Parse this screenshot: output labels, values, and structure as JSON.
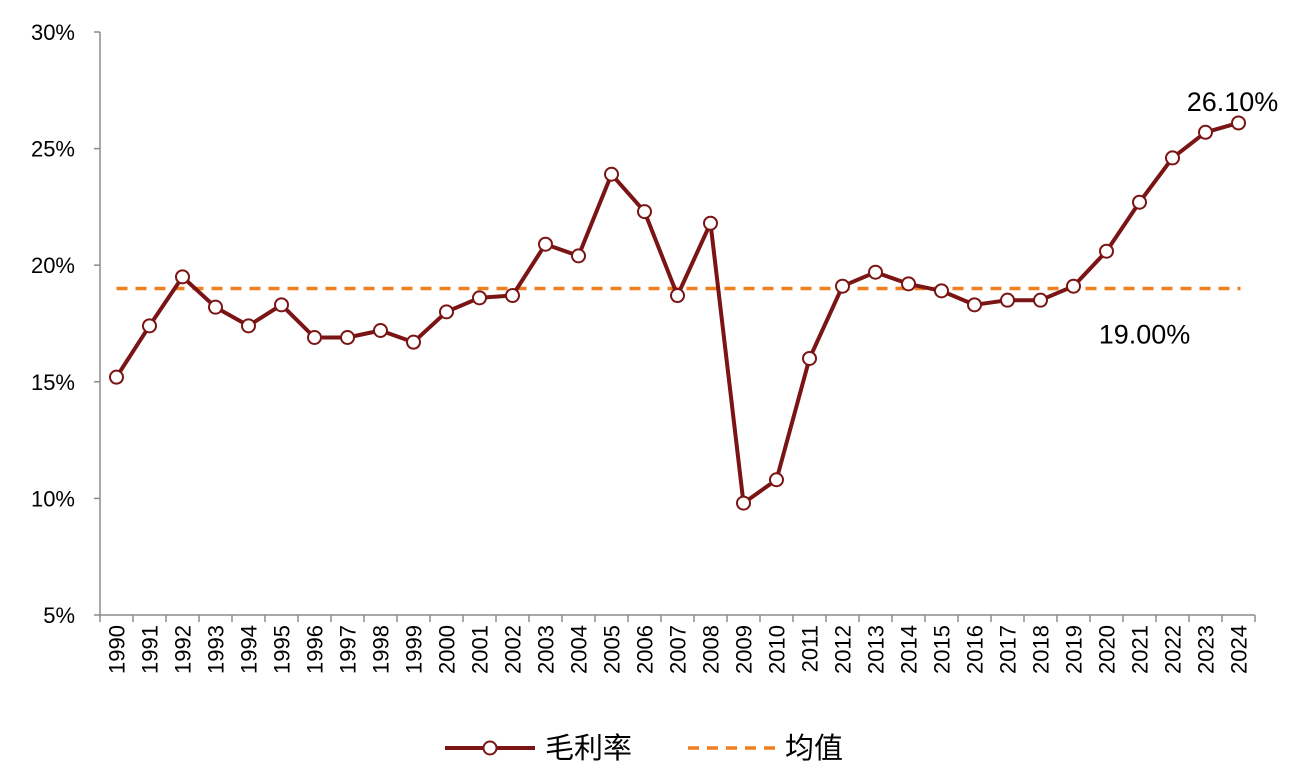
{
  "chart_data": {
    "type": "line",
    "x": [
      "1990",
      "1991",
      "1992",
      "1993",
      "1994",
      "1995",
      "1996",
      "1997",
      "1998",
      "1999",
      "2000",
      "2001",
      "2002",
      "2003",
      "2004",
      "2005",
      "2006",
      "2007",
      "2008",
      "2009",
      "2010",
      "2011",
      "2012",
      "2013",
      "2014",
      "2015",
      "2016",
      "2017",
      "2018",
      "2019",
      "2020",
      "2021",
      "2022",
      "2023",
      "2024"
    ],
    "series": [
      {
        "name": "毛利率",
        "color": "#7b1414",
        "values": [
          15.2,
          17.4,
          19.5,
          18.2,
          17.4,
          18.3,
          16.9,
          16.9,
          17.2,
          16.7,
          18.0,
          18.6,
          18.7,
          20.9,
          20.4,
          23.9,
          22.3,
          18.7,
          21.8,
          9.8,
          10.8,
          16.0,
          19.1,
          19.7,
          19.2,
          18.9,
          18.3,
          18.5,
          18.5,
          19.1,
          20.6,
          22.7,
          24.6,
          25.7,
          26.1
        ]
      },
      {
        "name": "均值",
        "color": "#f07f20",
        "style": "dashed",
        "values_constant": 19.0
      }
    ],
    "yticks": [
      "5%",
      "10%",
      "15%",
      "20%",
      "25%",
      "30%"
    ],
    "ytick_values": [
      5,
      10,
      15,
      20,
      25,
      30
    ],
    "ylim": [
      5,
      30
    ],
    "annotations": [
      {
        "text": "26.10%",
        "anchor_index": 34
      },
      {
        "text": "19.00%",
        "anchor_series": "均值"
      }
    ],
    "legend": {
      "placement": "bottom-center"
    },
    "grid": false
  }
}
